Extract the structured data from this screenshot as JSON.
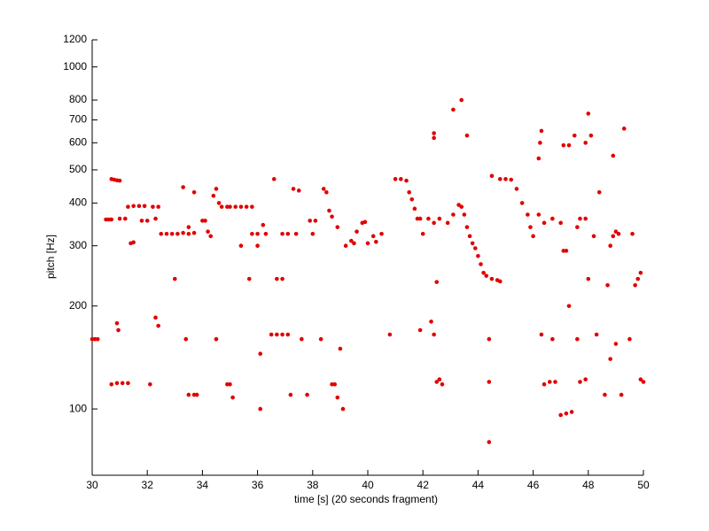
{
  "chart_data": {
    "type": "scatter",
    "xlabel": "time [s] (20 seconds fragment)",
    "ylabel": "pitch [Hz]",
    "color": "#e00000",
    "yscale": "log",
    "xlim": [
      30,
      50
    ],
    "xticks": [
      30,
      32,
      34,
      36,
      38,
      40,
      42,
      44,
      46,
      48,
      50
    ],
    "ylim": [
      64,
      1200
    ],
    "yticks": [
      100,
      200,
      300,
      400,
      500,
      600,
      700,
      800,
      1000,
      1200
    ],
    "x": [
      30.0,
      30.1,
      30.2,
      30.5,
      30.6,
      30.7,
      30.7,
      30.8,
      30.9,
      31.0,
      30.7,
      30.9,
      31.1,
      31.3,
      31.0,
      31.2,
      30.9,
      30.95,
      31.3,
      31.5,
      31.7,
      31.9,
      31.4,
      31.5,
      31.8,
      32.0,
      32.1,
      32.2,
      32.4,
      32.3,
      32.3,
      32.4,
      32.5,
      32.7,
      32.9,
      33.1,
      33.3,
      33.5,
      33.7,
      33.0,
      33.3,
      33.4,
      33.5,
      33.7,
      33.8,
      33.5,
      33.7,
      34.0,
      34.1,
      34.2,
      34.3,
      34.4,
      34.5,
      34.6,
      34.5,
      34.7,
      34.9,
      35.0,
      34.9,
      35.0,
      35.1,
      35.2,
      35.4,
      35.6,
      35.4,
      35.7,
      35.8,
      35.8,
      36.0,
      36.0,
      36.1,
      36.1,
      36.2,
      36.3,
      36.5,
      36.6,
      36.7,
      36.9,
      36.7,
      36.9,
      37.1,
      36.9,
      37.1,
      37.4,
      37.2,
      37.3,
      37.5,
      37.6,
      37.8,
      37.9,
      38.1,
      38.0,
      38.3,
      38.4,
      38.5,
      38.6,
      38.7,
      38.7,
      38.8,
      38.9,
      38.9,
      39.0,
      39.1,
      39.2,
      39.4,
      39.5,
      39.6,
      39.8,
      39.9,
      40.0,
      40.2,
      40.3,
      40.5,
      40.8,
      41.0,
      41.2,
      41.4,
      41.5,
      41.6,
      41.7,
      41.8,
      41.9,
      42.0,
      42.2,
      42.4,
      41.9,
      42.3,
      42.4,
      42.4,
      42.4,
      42.5,
      42.5,
      42.6,
      42.7,
      42.6,
      42.9,
      43.1,
      43.3,
      43.4,
      43.5,
      43.6,
      43.7,
      43.8,
      43.9,
      44.0,
      44.1,
      44.2,
      44.3,
      43.1,
      43.4,
      43.6,
      44.4,
      44.4,
      44.4,
      44.5,
      44.7,
      44.8,
      44.5,
      44.8,
      45.0,
      45.2,
      45.4,
      45.6,
      45.8,
      45.9,
      46.0,
      46.2,
      46.4,
      46.7,
      46.2,
      46.25,
      46.3,
      46.3,
      46.4,
      46.6,
      46.8,
      46.7,
      47.0,
      47.1,
      47.2,
      47.0,
      47.2,
      47.1,
      47.3,
      47.3,
      47.4,
      47.5,
      47.6,
      47.6,
      47.7,
      47.9,
      47.9,
      48.0,
      48.1,
      47.7,
      47.9,
      48.0,
      48.2,
      48.3,
      48.4,
      48.6,
      48.7,
      48.8,
      48.9,
      48.8,
      48.9,
      49.0,
      49.1,
      49.0,
      49.2,
      49.3,
      49.5,
      49.6,
      49.7,
      49.8,
      49.9,
      49.9,
      50.0
    ],
    "y": [
      160,
      160,
      160,
      358,
      358,
      358,
      470,
      468,
      466,
      465,
      118,
      119,
      119,
      119,
      360,
      360,
      178,
      170,
      390,
      392,
      392,
      392,
      305,
      307,
      355,
      355,
      118,
      390,
      390,
      360,
      185,
      175,
      325,
      325,
      325,
      325,
      327,
      325,
      327,
      240,
      445,
      160,
      110,
      110,
      110,
      340,
      430,
      355,
      355,
      330,
      320,
      420,
      440,
      400,
      160,
      390,
      390,
      390,
      118,
      118,
      108,
      390,
      390,
      390,
      300,
      240,
      390,
      325,
      325,
      300,
      100,
      145,
      345,
      325,
      165,
      470,
      240,
      240,
      165,
      165,
      165,
      325,
      325,
      325,
      110,
      440,
      435,
      160,
      110,
      355,
      355,
      325,
      160,
      440,
      430,
      380,
      365,
      118,
      118,
      108,
      340,
      150,
      100,
      300,
      310,
      305,
      330,
      350,
      352,
      305,
      320,
      308,
      325,
      165,
      470,
      470,
      465,
      430,
      410,
      385,
      360,
      360,
      325,
      360,
      350,
      170,
      180,
      165,
      620,
      640,
      235,
      120,
      122,
      118,
      360,
      350,
      370,
      395,
      390,
      370,
      340,
      320,
      305,
      295,
      280,
      265,
      250,
      245,
      750,
      800,
      630,
      120,
      160,
      80,
      240,
      238,
      236,
      480,
      470,
      470,
      468,
      440,
      400,
      370,
      340,
      320,
      370,
      350,
      360,
      540,
      600,
      650,
      165,
      118,
      120,
      120,
      160,
      350,
      290,
      290,
      96,
      97,
      590,
      590,
      200,
      98,
      630,
      340,
      160,
      360,
      360,
      600,
      730,
      630,
      120,
      122,
      240,
      320,
      165,
      430,
      110,
      230,
      140,
      550,
      300,
      320,
      330,
      325,
      155,
      110,
      660,
      160,
      325,
      230,
      240,
      250,
      122,
      120
    ]
  }
}
